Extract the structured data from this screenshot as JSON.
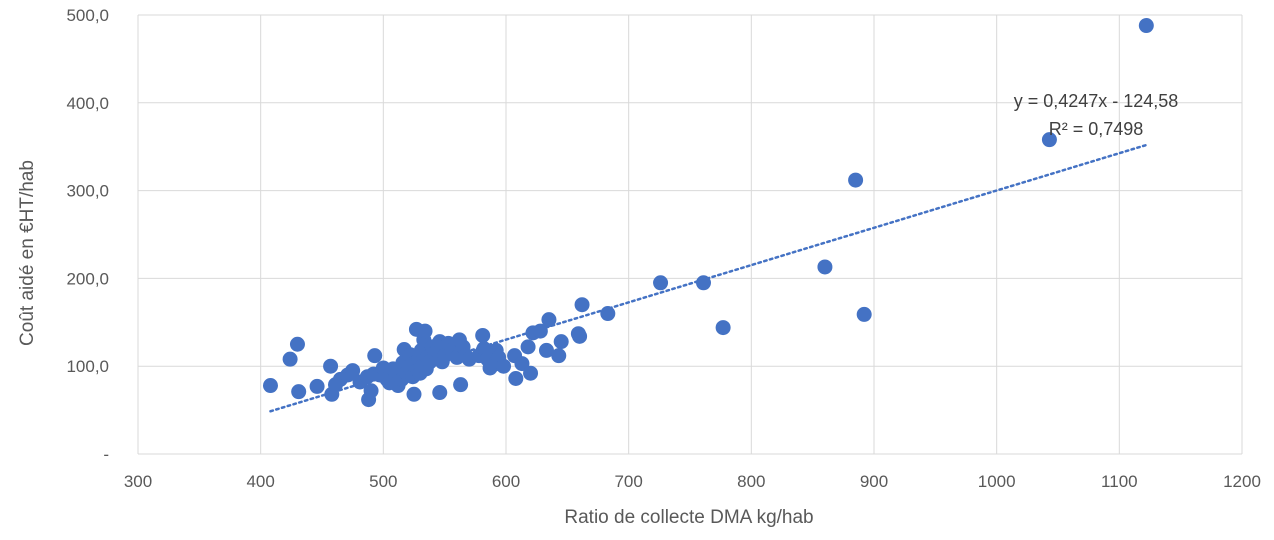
{
  "chart_data": {
    "type": "scatter",
    "title": "",
    "xlabel": "Ratio de collecte DMA kg/hab",
    "ylabel": "Coût aidé en €HT/hab",
    "xlim": [
      300,
      1200
    ],
    "ylim": [
      0,
      500
    ],
    "x_ticks": [
      300,
      400,
      500,
      600,
      700,
      800,
      900,
      1000,
      1100,
      1200
    ],
    "y_ticks": [
      0,
      100,
      200,
      300,
      400,
      500
    ],
    "x_tick_labels": [
      "300",
      "400",
      "500",
      "600",
      "700",
      "800",
      "900",
      "1000",
      "1100",
      "1200"
    ],
    "y_tick_labels": [
      "-",
      "100,0",
      "200,0",
      "300,0",
      "400,0",
      "500,0"
    ],
    "grid": "vertical and horizontal major gridlines",
    "legend": "none",
    "colors": {
      "points": "#4472C4",
      "trendline": "#4472C4",
      "grid": "#D9D9D9",
      "text": "#595959"
    },
    "trendline": {
      "type": "linear",
      "slope": 0.4247,
      "intercept": -124.58,
      "x_range": [
        408,
        1122
      ],
      "style": "dotted"
    },
    "annotations": {
      "equation": "y = 0,4247x - 124,58",
      "r2": "R² = 0,7498"
    },
    "series": [
      {
        "points": [
          [
            408,
            78
          ],
          [
            424,
            108
          ],
          [
            430,
            125
          ],
          [
            431,
            71
          ],
          [
            446,
            77
          ],
          [
            457,
            100
          ],
          [
            458,
            68
          ],
          [
            461,
            79
          ],
          [
            465,
            85
          ],
          [
            471,
            90
          ],
          [
            475,
            95
          ],
          [
            481,
            82
          ],
          [
            487,
            88
          ],
          [
            488,
            62
          ],
          [
            490,
            72
          ],
          [
            492,
            91
          ],
          [
            493,
            112
          ],
          [
            497,
            90
          ],
          [
            500,
            98
          ],
          [
            503,
            85
          ],
          [
            505,
            81
          ],
          [
            508,
            97
          ],
          [
            510,
            95
          ],
          [
            512,
            78
          ],
          [
            515,
            85
          ],
          [
            516,
            104
          ],
          [
            517,
            119
          ],
          [
            519,
            92
          ],
          [
            521,
            100
          ],
          [
            522,
            113
          ],
          [
            524,
            88
          ],
          [
            525,
            68
          ],
          [
            526,
            104
          ],
          [
            527,
            142
          ],
          [
            528,
            96
          ],
          [
            529,
            108
          ],
          [
            530,
            92
          ],
          [
            531,
            118
          ],
          [
            532,
            100
          ],
          [
            533,
            130
          ],
          [
            534,
            140
          ],
          [
            535,
            97
          ],
          [
            536,
            110
          ],
          [
            538,
            105
          ],
          [
            540,
            122
          ],
          [
            542,
            115
          ],
          [
            544,
            118
          ],
          [
            546,
            70
          ],
          [
            546,
            128
          ],
          [
            548,
            105
          ],
          [
            550,
            112
          ],
          [
            553,
            126
          ],
          [
            556,
            118
          ],
          [
            558,
            115
          ],
          [
            560,
            110
          ],
          [
            562,
            130
          ],
          [
            563,
            79
          ],
          [
            565,
            122
          ],
          [
            567,
            112
          ],
          [
            570,
            108
          ],
          [
            578,
            112
          ],
          [
            581,
            135
          ],
          [
            582,
            120
          ],
          [
            585,
            108
          ],
          [
            587,
            98
          ],
          [
            590,
            102
          ],
          [
            592,
            118
          ],
          [
            594,
            110
          ],
          [
            598,
            100
          ],
          [
            607,
            112
          ],
          [
            608,
            86
          ],
          [
            613,
            103
          ],
          [
            618,
            122
          ],
          [
            620,
            92
          ],
          [
            622,
            138
          ],
          [
            628,
            140
          ],
          [
            633,
            118
          ],
          [
            635,
            153
          ],
          [
            643,
            112
          ],
          [
            645,
            128
          ],
          [
            659,
            137
          ],
          [
            660,
            134
          ],
          [
            662,
            170
          ],
          [
            683,
            160
          ],
          [
            726,
            195
          ],
          [
            761,
            195
          ],
          [
            777,
            144
          ],
          [
            860,
            213
          ],
          [
            885,
            312
          ],
          [
            892,
            159
          ],
          [
            1043,
            358
          ],
          [
            1122,
            488
          ]
        ]
      }
    ]
  }
}
